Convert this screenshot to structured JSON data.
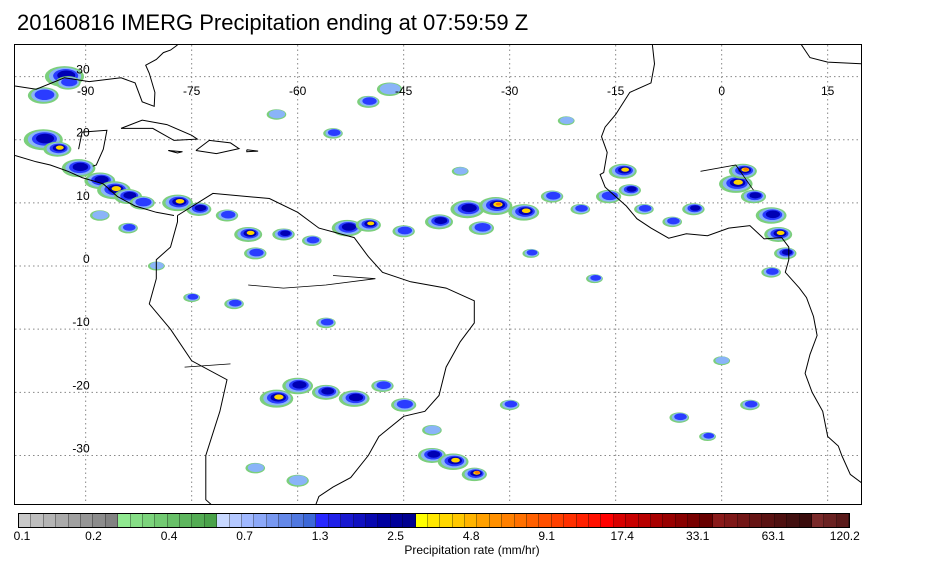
{
  "title": "20160816 IMERG Precipitation ending at 07:59:59 Z",
  "map": {
    "lon_range": [
      -100,
      20
    ],
    "lat_range": [
      -38,
      35
    ],
    "longitude_labels": [
      "-90",
      "-75",
      "-60",
      "-45",
      "-30",
      "-15",
      "0",
      "15"
    ],
    "latitude_labels": [
      "30",
      "20",
      "10",
      "0",
      "-10",
      "-20",
      "-30"
    ],
    "gridlines": "dotted",
    "coastline_color": "#000000"
  },
  "colorbar": {
    "tick_labels": [
      "0.1",
      "0.2",
      "0.4",
      "0.7",
      "1.3",
      "2.5",
      "4.8",
      "9.1",
      "17.4",
      "33.1",
      "63.1",
      "120.2"
    ],
    "units_label": "Precipitation rate (mm/hr)",
    "colors": [
      "#c8c8c8",
      "#bebebe",
      "#b4b4b4",
      "#aaaaaa",
      "#a0a0a0",
      "#969696",
      "#8c8c8c",
      "#828282",
      "#90e890",
      "#86de86",
      "#7cd47c",
      "#72ca72",
      "#68c068",
      "#5eb65e",
      "#54ac54",
      "#4aa24a",
      "#c8d8ff",
      "#b4c8ff",
      "#a0b8ff",
      "#8ca8f8",
      "#7898f0",
      "#6488e8",
      "#5078e0",
      "#3c68d8",
      "#2828ff",
      "#2020e8",
      "#1818d0",
      "#1010c0",
      "#0808b0",
      "#0000a0",
      "#00009a",
      "#000090",
      "#ffff00",
      "#ffe800",
      "#ffd800",
      "#ffc800",
      "#ffb400",
      "#ffa000",
      "#ff9000",
      "#ff8000",
      "#ff7000",
      "#ff6000",
      "#ff5000",
      "#ff4000",
      "#ff3000",
      "#ff2000",
      "#ff1000",
      "#ff0000",
      "#d80000",
      "#c80000",
      "#b80000",
      "#a80000",
      "#980000",
      "#880000",
      "#780000",
      "#680000",
      "#8a1a1a",
      "#7e1818",
      "#721616",
      "#661414",
      "#5a1212",
      "#4e1010",
      "#421010",
      "#3a0c0c",
      "#7a2a2a",
      "#6a2222",
      "#5a1a1a"
    ]
  },
  "precip_palette": {
    "light": "#7ccf7c",
    "moderate": "#8ab4f8",
    "heavy": "#2a3cff",
    "very_heavy": "#0000b4",
    "intense": "#ffd400",
    "extreme": "#ff7a00",
    "max": "#e00000"
  }
}
